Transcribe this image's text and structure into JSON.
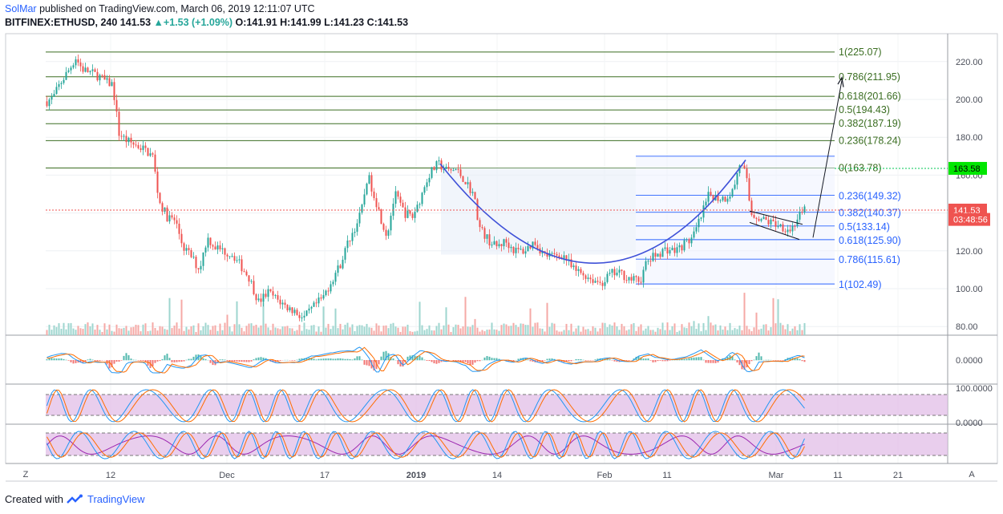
{
  "header": {
    "author": "SolMar",
    "published": "published on TradingView.com, March 06, 2019 12:11:07 UTC",
    "symbol": "BITFINEX:ETHUSD, 240",
    "last": "141.53",
    "change": "+1.53 (+1.09%)",
    "ohlc_o": "O:141.91",
    "ohlc_h": "H:141.99",
    "ohlc_l": "L:141.23",
    "ohlc_c": "C:141.53"
  },
  "footer": {
    "created_with": "Created with",
    "brand": "TradingView"
  },
  "colors": {
    "up": "#26a69a",
    "down": "#ef5350",
    "fib_green": "#3b6e22",
    "fib_blue": "#2962ff",
    "oscillator_fill": "#e1bee7",
    "cup_curve": "#3f51d8",
    "current_price_bg": "#ef5350",
    "target_price_bg": "#00e600"
  },
  "chart_data": {
    "type": "candlestick",
    "symbol": "BITFINEX:ETHUSD",
    "interval": "240",
    "price_ticks": [
      "220.00",
      "200.00",
      "180.00",
      "160.00",
      "140.00",
      "120.00",
      "100.00",
      "80.00"
    ],
    "price_tick_values": [
      220,
      200,
      180,
      160,
      140,
      120,
      100,
      80
    ],
    "ylim": [
      76,
      234
    ],
    "x_labels": [
      "12",
      "Dec",
      "17",
      "2019",
      "14",
      "Feb",
      "11",
      "Mar",
      "11",
      "21"
    ],
    "macd_tick": "0.0000",
    "stoch_ticks": [
      "100.0000",
      "0.0000"
    ],
    "price_labels": [
      {
        "text": "163.58",
        "value": 163.58,
        "kind": "target"
      },
      {
        "text": "141.53",
        "value": 141.53,
        "kind": "last"
      },
      {
        "text": "03:48:56",
        "value": 136.6,
        "kind": "countdown"
      }
    ],
    "fib_extension_large": [
      {
        "label": "1(225.07)",
        "value": 225.07
      },
      {
        "label": "0.786(211.95)",
        "value": 211.95
      },
      {
        "label": "0.618(201.66)",
        "value": 201.66
      },
      {
        "label": "0.5(194.43)",
        "value": 194.43
      },
      {
        "label": "0.382(187.19)",
        "value": 187.19
      },
      {
        "label": "0.236(178.24)",
        "value": 178.24
      },
      {
        "label": "0(163.78)",
        "value": 163.78
      }
    ],
    "fib_retracement_small": [
      {
        "label": "0.236(149.32)",
        "value": 149.32
      },
      {
        "label": "0.382(140.37)",
        "value": 140.37
      },
      {
        "label": "0.5(133.14)",
        "value": 133.14
      },
      {
        "label": "0.618(125.90)",
        "value": 125.9
      },
      {
        "label": "0.786(115.61)",
        "value": 115.61
      },
      {
        "label": "1(102.49)",
        "value": 102.49
      }
    ],
    "close_path": [
      [
        0,
        199
      ],
      [
        8,
        201
      ],
      [
        16,
        208
      ],
      [
        28,
        216
      ],
      [
        36,
        222
      ],
      [
        44,
        216
      ],
      [
        56,
        214
      ],
      [
        66,
        212
      ],
      [
        74,
        209
      ],
      [
        82,
        208
      ],
      [
        90,
        182
      ],
      [
        100,
        178
      ],
      [
        110,
        176
      ],
      [
        120,
        174
      ],
      [
        132,
        170
      ],
      [
        140,
        146
      ],
      [
        150,
        138
      ],
      [
        160,
        136
      ],
      [
        170,
        122
      ],
      [
        180,
        117
      ],
      [
        190,
        110
      ],
      [
        200,
        127
      ],
      [
        210,
        122
      ],
      [
        220,
        120
      ],
      [
        232,
        118
      ],
      [
        242,
        112
      ],
      [
        252,
        106
      ],
      [
        264,
        93
      ],
      [
        276,
        98
      ],
      [
        288,
        94
      ],
      [
        300,
        90
      ],
      [
        310,
        88
      ],
      [
        320,
        84
      ],
      [
        332,
        90
      ],
      [
        344,
        95
      ],
      [
        356,
        105
      ],
      [
        366,
        113
      ],
      [
        376,
        125
      ],
      [
        384,
        132
      ],
      [
        392,
        140
      ],
      [
        400,
        160
      ],
      [
        408,
        150
      ],
      [
        416,
        138
      ],
      [
        424,
        128
      ],
      [
        434,
        150
      ],
      [
        446,
        140
      ],
      [
        456,
        138
      ],
      [
        466,
        148
      ],
      [
        476,
        160
      ],
      [
        488,
        166
      ],
      [
        500,
        162
      ],
      [
        510,
        163
      ],
      [
        520,
        158
      ],
      [
        532,
        150
      ],
      [
        540,
        132
      ],
      [
        550,
        126
      ],
      [
        560,
        122
      ],
      [
        572,
        125
      ],
      [
        584,
        120
      ],
      [
        596,
        120
      ],
      [
        608,
        125
      ],
      [
        620,
        118
      ],
      [
        632,
        117
      ],
      [
        644,
        118
      ],
      [
        656,
        110
      ],
      [
        668,
        108
      ],
      [
        680,
        105
      ],
      [
        692,
        103
      ],
      [
        704,
        108
      ],
      [
        716,
        108
      ],
      [
        728,
        105
      ],
      [
        740,
        104
      ],
      [
        748,
        114
      ],
      [
        760,
        118
      ],
      [
        772,
        121
      ],
      [
        784,
        120
      ],
      [
        796,
        124
      ],
      [
        806,
        127
      ],
      [
        816,
        138
      ],
      [
        826,
        150
      ],
      [
        836,
        148
      ],
      [
        846,
        148
      ],
      [
        856,
        152
      ],
      [
        864,
        166
      ],
      [
        872,
        160
      ],
      [
        878,
        140
      ],
      [
        890,
        137
      ],
      [
        902,
        135
      ],
      [
        912,
        134
      ],
      [
        922,
        132
      ],
      [
        928,
        131
      ],
      [
        936,
        137
      ],
      [
        946,
        141.5
      ]
    ]
  }
}
